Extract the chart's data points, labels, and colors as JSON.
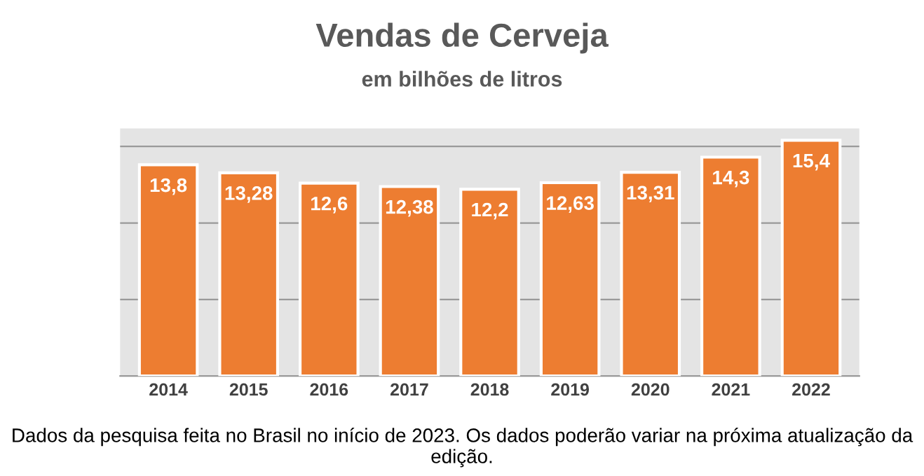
{
  "chart_data": {
    "type": "bar",
    "title": "Vendas de Cerveja",
    "subtitle": "em bilhões de litros",
    "categories": [
      "2014",
      "2015",
      "2016",
      "2017",
      "2018",
      "2019",
      "2020",
      "2021",
      "2022"
    ],
    "values": [
      13.8,
      13.28,
      12.6,
      12.38,
      12.2,
      12.63,
      13.31,
      14.3,
      15.4
    ],
    "value_labels": [
      "13,8",
      "13,28",
      "12,6",
      "12,38",
      "12,2",
      "12,63",
      "13,31",
      "14,3",
      "15,4"
    ],
    "color": "#ed7d31",
    "grid": "y",
    "tick_labels": "x",
    "annotations": [
      "Dados da pesquisa feita no Brasil no início de 2023. Os dados poderão variar na próxima atualização da edição."
    ]
  }
}
